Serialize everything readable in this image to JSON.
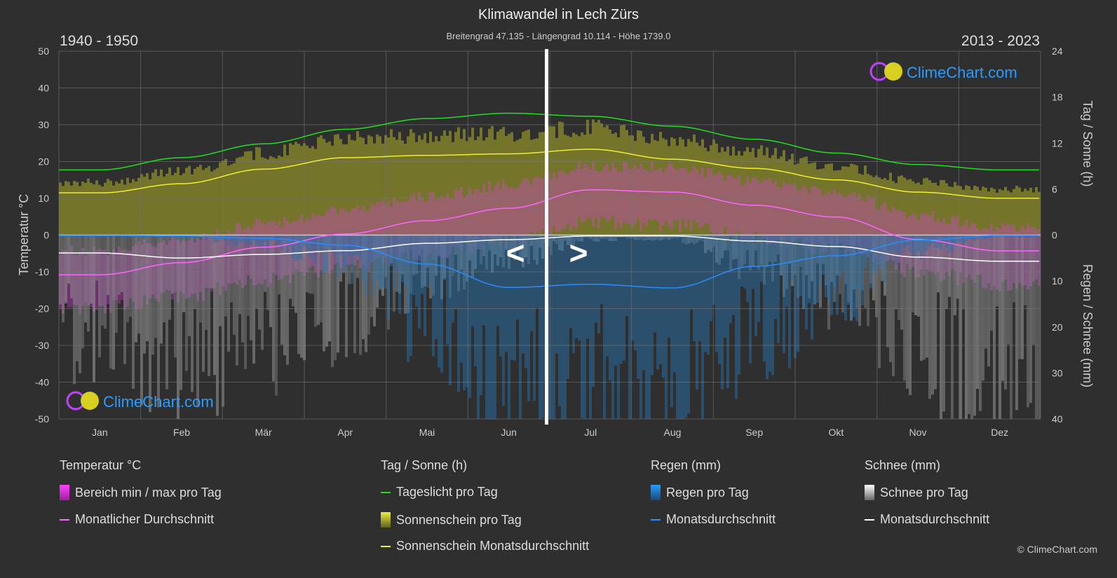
{
  "title": "Klimawandel in Lech Zürs",
  "subtitle": "Breitengrad 47.135 - Längengrad 10.114 - Höhe 1739.0",
  "period_left": "1940 - 1950",
  "period_right": "2013 - 2023",
  "logo_text": "ClimeChart.com",
  "copyright": "© ClimeChart.com",
  "nav": {
    "prev": "<",
    "next": ">"
  },
  "chart_data": {
    "type": "line",
    "categories": [
      "Jan",
      "Feb",
      "Mär",
      "Apr",
      "Mai",
      "Jun",
      "Jul",
      "Aug",
      "Sep",
      "Okt",
      "Nov",
      "Dez"
    ],
    "y_left": {
      "label": "Temperatur °C",
      "range": [
        -50,
        50
      ],
      "ticks": [
        50,
        40,
        30,
        20,
        10,
        0,
        -10,
        -20,
        -30,
        -40,
        -50
      ]
    },
    "y_right_top": {
      "label": "Tag / Sonne (h)",
      "range": [
        0,
        24
      ],
      "ticks": [
        24,
        18,
        12,
        6,
        0
      ]
    },
    "y_right_bottom": {
      "label": "Regen / Schnee (mm)",
      "range": [
        0,
        40
      ],
      "ticks": [
        10,
        20,
        30,
        40
      ]
    },
    "grid": true,
    "series": [
      {
        "name": "Monatlicher Durchschnitt",
        "group": "temperature",
        "color": "#ff66ff",
        "values": [
          -10.8,
          -7.5,
          -3.3,
          0.3,
          3.9,
          7.3,
          12.3,
          11.7,
          8.1,
          4.9,
          -1.2,
          -4.3
        ]
      },
      {
        "name": "Tageslicht pro Tag",
        "group": "daylight",
        "color": "#22dd22",
        "values": [
          8.5,
          10.1,
          11.9,
          13.8,
          15.2,
          15.9,
          15.5,
          14.2,
          12.5,
          10.7,
          9.2,
          8.5
        ]
      },
      {
        "name": "Sonnenschein Monatsdurchschnitt",
        "group": "sunshine",
        "color": "#eeee33",
        "values": [
          5.5,
          6.7,
          8.6,
          10.1,
          10.4,
          10.6,
          11.2,
          9.9,
          8.7,
          7.2,
          5.6,
          4.8
        ]
      },
      {
        "name": "Monatsdurchschnitt",
        "group": "rain",
        "color": "#2a8cff",
        "values": [
          0.1,
          0.2,
          0.7,
          2.2,
          6.3,
          11.4,
          10.7,
          11.5,
          6.8,
          4.5,
          1.1,
          0.1
        ]
      },
      {
        "name": "Monatsdurchschnitt",
        "group": "snow",
        "color": "#ffffff",
        "values": [
          3.9,
          5.0,
          4.2,
          3.4,
          1.8,
          1.0,
          0.2,
          0.2,
          1.3,
          2.5,
          4.8,
          5.7
        ]
      }
    ]
  },
  "legend": {
    "temperature": {
      "title": "Temperatur °C",
      "items": [
        "Bereich min / max pro Tag",
        "Monatlicher Durchschnitt"
      ]
    },
    "sun": {
      "title": "Tag / Sonne (h)",
      "items": [
        "Tageslicht pro Tag",
        "Sonnenschein pro Tag",
        "Sonnenschein Monatsdurchschnitt"
      ]
    },
    "rain": {
      "title": "Regen (mm)",
      "items": [
        "Regen pro Tag",
        "Monatsdurchschnitt"
      ]
    },
    "snow": {
      "title": "Schnee (mm)",
      "items": [
        "Schnee pro Tag",
        "Monatsdurchschnitt"
      ]
    }
  },
  "colors": {
    "background": "#2f2f2f",
    "temp_range": "#e040e0",
    "sunshine_bar": "#8c8c2a",
    "rain_bar": "#2a6fa8",
    "snow_bar": "#9a9a9a"
  }
}
